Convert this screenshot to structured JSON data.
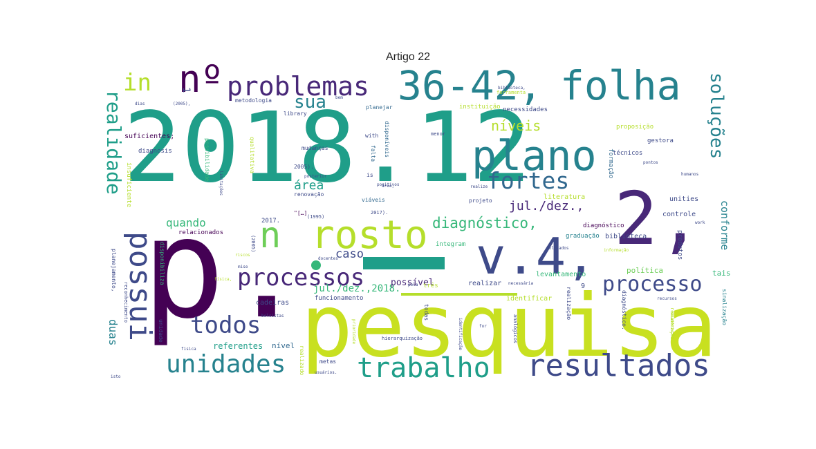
{
  "chart_data": {
    "type": "wordcloud",
    "title": "Artigo 22",
    "palette": [
      "#440154",
      "#482878",
      "#3e4a89",
      "#31688e",
      "#26828e",
      "#1f9e89",
      "#35b779",
      "#6ece58",
      "#b5de2b",
      "#fde725"
    ],
    "words": [
      {
        "text": "2018.12",
        "color": "#1f9e89"
      },
      {
        "text": "p.",
        "color": "#440154"
      },
      {
        "text": "pesquisa",
        "color": "#c8e020"
      },
      {
        "text": "v.4,",
        "color": "#3e4a89"
      },
      {
        "text": "2,",
        "color": "#482878"
      },
      {
        "text": "36-42,",
        "color": "#26828e"
      },
      {
        "text": "folha",
        "color": "#26828e"
      },
      {
        "text": "plano",
        "color": "#26828e"
      },
      {
        "text": "rosto",
        "color": "#b5de2b"
      },
      {
        "text": "possui",
        "color": "#3e4a89"
      },
      {
        "text": "nº",
        "color": "#440154"
      },
      {
        "text": "problemas",
        "color": "#482878"
      },
      {
        "text": "resultados",
        "color": "#3e4a89"
      },
      {
        "text": "trabalho",
        "color": "#1f9e89"
      },
      {
        "text": "unidades",
        "color": "#26828e"
      },
      {
        "text": "processos",
        "color": "#482878"
      },
      {
        "text": "processo",
        "color": "#3e4a89"
      },
      {
        "text": "todos",
        "color": "#3e4a89"
      },
      {
        "text": "n",
        "color": "#6ece58"
      },
      {
        "text": "fortes",
        "color": "#31688e"
      },
      {
        "text": "realidade",
        "color": "#1f9e89"
      },
      {
        "text": "soluções",
        "color": "#26828e"
      },
      {
        "text": "in",
        "color": "#b5de2b"
      },
      {
        "text": "sua",
        "color": "#26828e"
      },
      {
        "text": "diagnóstico,",
        "color": "#35b779"
      },
      {
        "text": "níveis",
        "color": "#b5de2b"
      },
      {
        "text": "jul./dez.,",
        "color": "#482878"
      },
      {
        "text": "área",
        "color": "#1f9e89"
      },
      {
        "text": "caso",
        "color": "#3e4a89"
      },
      {
        "text": "quando",
        "color": "#35b779"
      },
      {
        "text": "conforme",
        "color": "#26828e"
      },
      {
        "text": "duas",
        "color": "#26828e"
      },
      {
        "text": "jul./dez.,2018.",
        "color": "#35b779"
      },
      {
        "text": "possível",
        "color": "#482878"
      },
      {
        "text": "referentes",
        "color": "#1f9e89"
      },
      {
        "text": "nível",
        "color": "#31688e"
      },
      {
        "text": "cadeiras",
        "color": "#3e4a89"
      },
      {
        "text": "funcionamento",
        "color": "#3e4a89"
      },
      {
        "text": "três",
        "color": "#b5de2b"
      },
      {
        "text": "realizar",
        "color": "#3e4a89"
      },
      {
        "text": "identificar",
        "color": "#b5de2b"
      },
      {
        "text": "política",
        "color": "#6ece58"
      },
      {
        "text": "levantamento",
        "color": "#35b779"
      },
      {
        "text": "tais",
        "color": "#35b779"
      },
      {
        "text": "biblioteca",
        "color": "#3e4a89"
      },
      {
        "text": "graduação",
        "color": "#26828e"
      },
      {
        "text": "integram",
        "color": "#35b779"
      },
      {
        "text": "produtos",
        "color": "#3e4a89"
      },
      {
        "text": "diagnóstico",
        "color": "#440154"
      },
      {
        "text": "controle",
        "color": "#3e4a89"
      },
      {
        "text": "unities",
        "color": "#3e4a89"
      },
      {
        "text": "literatura",
        "color": "#b5de2b"
      },
      {
        "text": "projeto",
        "color": "#3e4a89"
      },
      {
        "text": "viáveis",
        "color": "#31688e"
      },
      {
        "text": "renovação",
        "color": "#3e4a89"
      },
      {
        "text": "relacionados",
        "color": "#440154"
      },
      {
        "text": "suficientes;",
        "color": "#440154"
      },
      {
        "text": "diagnosis",
        "color": "#3e4a89"
      },
      {
        "text": "metodologia",
        "color": "#3e4a89"
      },
      {
        "text": "library",
        "color": "#3e4a89"
      },
      {
        "text": "planejar",
        "color": "#31688e"
      },
      {
        "text": "necessidades",
        "color": "#3e4a89"
      },
      {
        "text": "instituição",
        "color": "#b5de2b"
      },
      {
        "text": "proposição",
        "color": "#b5de2b"
      },
      {
        "text": "gestora",
        "color": "#3e4a89"
      },
      {
        "text": "técnicos",
        "color": "#3e4a89"
      },
      {
        "text": "mudanças",
        "color": "#3e4a89"
      },
      {
        "text": "menor",
        "color": "#3e4a89"
      },
      {
        "text": "possibilidade",
        "color": "#35b779"
      },
      {
        "text": "qualitativa",
        "color": "#b5de2b"
      },
      {
        "text": "disponíveis",
        "color": "#31688e"
      },
      {
        "text": "falta",
        "color": "#31688e"
      },
      {
        "text": "formação",
        "color": "#31688e"
      },
      {
        "text": "2005).",
        "color": "#3e4a89"
      },
      {
        "text": "2017.",
        "color": "#3e4a89"
      },
      {
        "text": "(1995)",
        "color": "#3e4a89"
      },
      {
        "text": "2017).",
        "color": "#3e4a89"
      },
      {
        "text": "\"[…]",
        "color": "#440154"
      },
      {
        "text": "(2005)",
        "color": "#3e4a89"
      },
      {
        "text": "planejamento,",
        "color": "#3e4a89"
      },
      {
        "text": "reconhecimento",
        "color": "#3e4a89"
      },
      {
        "text": "insuficiente",
        "color": "#b5de2b"
      },
      {
        "text": "disponibiliza",
        "color": "#35b779"
      },
      {
        "text": "unidade",
        "color": "#3e4a89"
      },
      {
        "text": "realização",
        "color": "#3e4a89"
      },
      {
        "text": "diagnóstico.",
        "color": "#3e4a89"
      },
      {
        "text": "remuneração",
        "color": "#b5de2b"
      },
      {
        "text": "sinalização",
        "color": "#26828e"
      },
      {
        "text": "realizado",
        "color": "#b5de2b"
      },
      {
        "text": "metas",
        "color": "#3e4a89"
      },
      {
        "text": "todas",
        "color": "#3e4a89"
      },
      {
        "text": "hierarquização",
        "color": "#3e4a89"
      },
      {
        "text": "analógicos",
        "color": "#3e4a89"
      },
      {
        "text": "ferramenta",
        "color": "#b5de2b"
      },
      {
        "text": "limitações",
        "color": "#3e4a89"
      },
      {
        "text": "with",
        "color": "#3e4a89"
      },
      {
        "text": "is",
        "color": "#3e4a89"
      },
      {
        "text": "posterior",
        "color": "#3e4a89"
      },
      {
        "text": "positivos",
        "color": "#3e4a89"
      },
      {
        "text": "realize",
        "color": "#3e4a89"
      },
      {
        "text": "humanos",
        "color": "#3e4a89"
      },
      {
        "text": "work",
        "color": "#3e4a89"
      },
      {
        "text": "coletados",
        "color": "#3e4a89"
      },
      {
        "text": "física,",
        "color": "#b5de2b"
      },
      {
        "text": "pontos",
        "color": "#3e4a89"
      },
      {
        "text": "biblioteca,",
        "color": "#3e4a89"
      },
      {
        "text": "necessária",
        "color": "#3e4a89"
      },
      {
        "text": "recursos",
        "color": "#3e4a89"
      },
      {
        "text": "for",
        "color": "#3e4a89"
      },
      {
        "text": "fisica",
        "color": "#3e4a89"
      },
      {
        "text": "usuários.",
        "color": "#3e4a89"
      },
      {
        "text": "bem",
        "color": "#3e4a89"
      },
      {
        "text": "docentes",
        "color": "#3e4a89"
      },
      {
        "text": "riscos",
        "color": "#b5de2b"
      },
      {
        "text": "mise",
        "color": "#3e4a89"
      },
      {
        "text": "identificação",
        "color": "#3e4a89"
      },
      {
        "text": "informação",
        "color": "#b5de2b"
      },
      {
        "text": "acadêmica",
        "color": "#b5de2b"
      },
      {
        "text": "(2005),",
        "color": "#3e4a89"
      },
      {
        "text": "dias",
        "color": "#3e4a89"
      },
      {
        "text": "isto",
        "color": "#3e4a89"
      },
      {
        "text": "área,",
        "color": "#3e4a89"
      },
      {
        "text": "pela",
        "color": "#3e4a89"
      },
      {
        "text": "prioridade",
        "color": "#b5de2b"
      },
      {
        "text": "bolsistas",
        "color": "#3e4a89"
      },
      {
        "text": "9",
        "color": "#3e4a89"
      },
      {
        "text": "1",
        "color": "#3e4a89"
      }
    ]
  }
}
